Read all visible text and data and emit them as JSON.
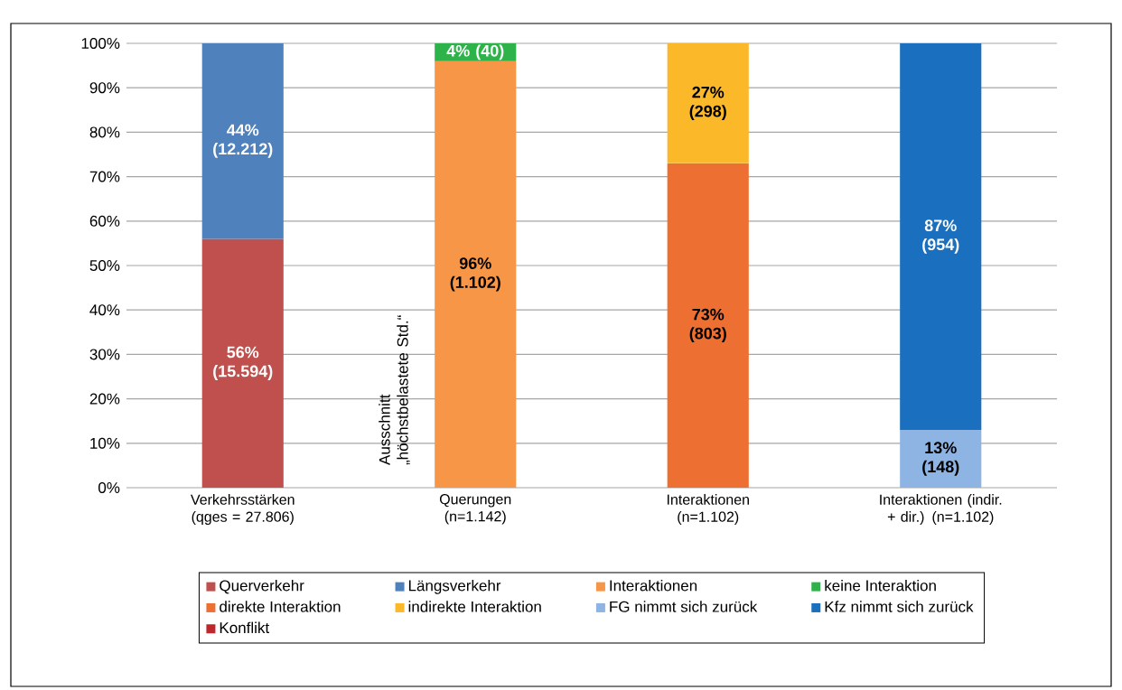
{
  "chart_data": {
    "type": "bar",
    "stacked": true,
    "categories": [
      "Verkehrsstärken (qges = 27.806)",
      "Querungen (n=1.142)",
      "Interaktionen (n=1.102)",
      "Interaktionen (indir. + dir.) (n=1.102)"
    ],
    "series": [
      {
        "name": "Querverkehr",
        "color": "#c0504d",
        "values": [
          56,
          null,
          null,
          null
        ],
        "value_labels": [
          "56% (15.594)",
          null,
          null,
          null
        ]
      },
      {
        "name": "Längsverkehr",
        "color": "#4f81bd",
        "values": [
          44,
          null,
          null,
          null
        ],
        "value_labels": [
          "44% (12.212)",
          null,
          null,
          null
        ]
      },
      {
        "name": "Interaktionen",
        "color": "#f79646",
        "values": [
          null,
          96,
          null,
          null
        ],
        "value_labels": [
          null,
          "96% (1.102)",
          null,
          null
        ]
      },
      {
        "name": "keine Interaktion",
        "color": "#2db34a",
        "values": [
          null,
          4,
          null,
          null
        ],
        "value_labels": [
          null,
          "4% (40)",
          null,
          null
        ]
      },
      {
        "name": "direkte Interaktion",
        "color": "#ed6f31",
        "values": [
          null,
          null,
          73,
          null
        ],
        "value_labels": [
          null,
          null,
          "73% (803)",
          null
        ]
      },
      {
        "name": "indirekte Interaktion",
        "color": "#fbb829",
        "values": [
          null,
          null,
          27,
          null
        ],
        "value_labels": [
          null,
          null,
          "27% (298)",
          null
        ]
      },
      {
        "name": "FG nimmt sich zurück",
        "color": "#8db4e2",
        "values": [
          null,
          null,
          null,
          13
        ],
        "value_labels": [
          null,
          null,
          null,
          "13% (148)"
        ]
      },
      {
        "name": "Kfz nimmt sich zurück",
        "color": "#1a70bf",
        "values": [
          null,
          null,
          null,
          87
        ],
        "value_labels": [
          null,
          null,
          null,
          "87% (954)"
        ]
      },
      {
        "name": "Konflikt",
        "color": "#c0272d",
        "values": [
          null,
          null,
          null,
          null
        ]
      }
    ],
    "ylim": [
      0,
      100
    ],
    "yticks": [
      {
        "value": 0,
        "label": "0%"
      },
      {
        "value": 10,
        "label": "10%"
      },
      {
        "value": 20,
        "label": "20%"
      },
      {
        "value": 30,
        "label": "30%"
      },
      {
        "value": 40,
        "label": "40%"
      },
      {
        "value": 50,
        "label": "50%"
      },
      {
        "value": 60,
        "label": "60%"
      },
      {
        "value": 70,
        "label": "70%"
      },
      {
        "value": 80,
        "label": "80%"
      },
      {
        "value": 90,
        "label": "90%"
      },
      {
        "value": 100,
        "label": "100%"
      }
    ],
    "grid": "y",
    "legend": "bottom",
    "annotations": [
      "Ausschnitt „höchstbelastete Std.“"
    ]
  }
}
